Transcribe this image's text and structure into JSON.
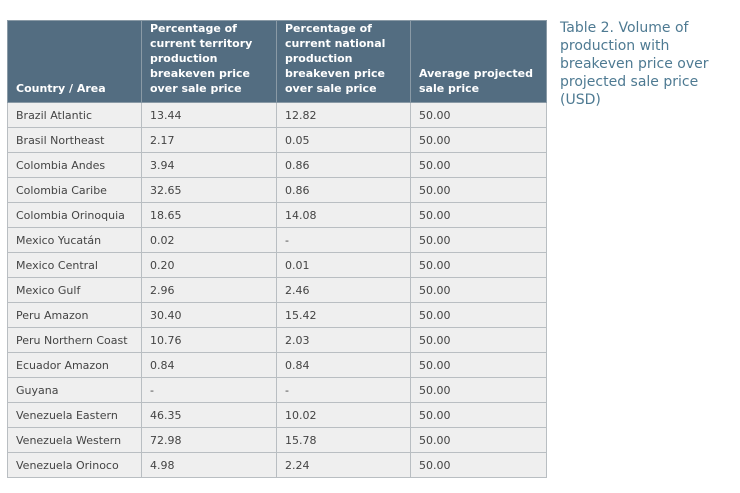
{
  "table": {
    "caption": "Table 2. Volume of production with breakeven price over projected sale price (USD)",
    "headers": [
      "Country / Area",
      "Percentage of current territory production breakeven price over sale price",
      "Percentage of current national production breakeven price over sale price",
      "Average projected sale price"
    ],
    "rows": [
      [
        "Brazil Atlantic",
        "13.44",
        "12.82",
        "50.00"
      ],
      [
        "Brasil Northeast",
        "2.17",
        "0.05",
        "50.00"
      ],
      [
        "Colombia Andes",
        "3.94",
        "0.86",
        "50.00"
      ],
      [
        "Colombia Caribe",
        "32.65",
        "0.86",
        "50.00"
      ],
      [
        "Colombia Orinoquia",
        "18.65",
        "14.08",
        "50.00"
      ],
      [
        "Mexico Yucatán",
        "0.02",
        "-",
        "50.00"
      ],
      [
        "Mexico Central",
        "0.20",
        "0.01",
        "50.00"
      ],
      [
        "Mexico Gulf",
        "2.96",
        "2.46",
        "50.00"
      ],
      [
        "Peru Amazon",
        "30.40",
        "15.42",
        "50.00"
      ],
      [
        "Peru Northern Coast",
        "10.76",
        "2.03",
        "50.00"
      ],
      [
        "Ecuador Amazon",
        "0.84",
        "0.84",
        "50.00"
      ],
      [
        "Guyana",
        "-",
        "-",
        "50.00"
      ],
      [
        "Venezuela Eastern",
        "46.35",
        "10.02",
        "50.00"
      ],
      [
        "Venezuela Western",
        "72.98",
        "15.78",
        "50.00"
      ],
      [
        "Venezuela Orinoco",
        "4.98",
        "2.24",
        "50.00"
      ]
    ]
  }
}
